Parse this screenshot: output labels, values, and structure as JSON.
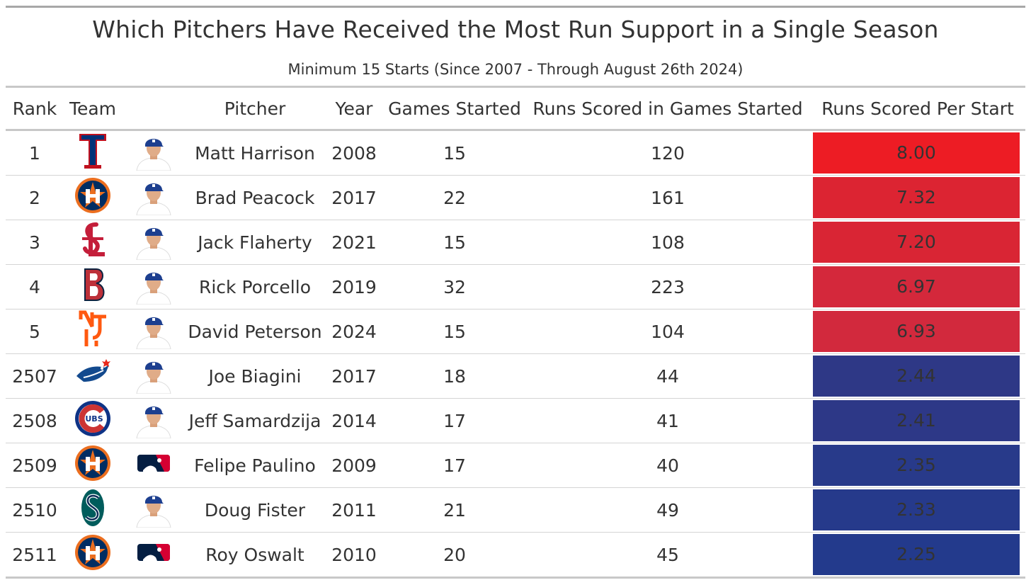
{
  "title": "Which Pitchers Have Received the Most Run Support in a Single Season",
  "subtitle": "Minimum 15 Starts (Since 2007 - Through August 26th 2024)",
  "columns": {
    "rank": "Rank",
    "team": "Team",
    "pitcher": "Pitcher",
    "year": "Year",
    "games_started": "Games Started",
    "runs_scored": "Runs Scored in Games Started",
    "runs_per_start": "Runs Scored Per Start"
  },
  "colors": {
    "high": "#ed1c24",
    "low": "#23398a"
  },
  "chart_data": {
    "type": "table",
    "title": "Which Pitchers Have Received the Most Run Support in a Single Season",
    "subtitle": "Minimum 15 Starts (Since 2007 - Through August 26th 2024)",
    "rows": [
      {
        "rank": "1",
        "team_logo": "rangers-logo",
        "photo": "player-headshot",
        "pitcher": "Matt Harrison",
        "year": "2008",
        "games_started": "15",
        "runs_scored": "120",
        "runs_per_start": "8.00",
        "fill": "#ed1c24"
      },
      {
        "rank": "2",
        "team_logo": "astros-logo",
        "photo": "player-headshot",
        "pitcher": "Brad Peacock",
        "year": "2017",
        "games_started": "22",
        "runs_scored": "161",
        "runs_per_start": "7.32",
        "fill": "#dc2432"
      },
      {
        "rank": "3",
        "team_logo": "cardinals-logo",
        "photo": "player-headshot",
        "pitcher": "Jack Flaherty",
        "year": "2021",
        "games_started": "15",
        "runs_scored": "108",
        "runs_per_start": "7.20",
        "fill": "#d92534"
      },
      {
        "rank": "4",
        "team_logo": "red-sox-logo",
        "photo": "player-headshot",
        "pitcher": "Rick Porcello",
        "year": "2019",
        "games_started": "32",
        "runs_scored": "223",
        "runs_per_start": "6.97",
        "fill": "#d4283b"
      },
      {
        "rank": "5",
        "team_logo": "mets-logo",
        "photo": "player-headshot",
        "pitcher": "David Peterson",
        "year": "2024",
        "games_started": "15",
        "runs_scored": "104",
        "runs_per_start": "6.93",
        "fill": "#d2293d"
      },
      {
        "rank": "2507",
        "team_logo": "blue-jays-logo",
        "photo": "player-headshot",
        "pitcher": "Joe Biagini",
        "year": "2017",
        "games_started": "18",
        "runs_scored": "44",
        "runs_per_start": "2.44",
        "fill": "#2e3886"
      },
      {
        "rank": "2508",
        "team_logo": "cubs-logo",
        "photo": "player-headshot",
        "pitcher": "Jeff Samardzija",
        "year": "2014",
        "games_started": "17",
        "runs_scored": "41",
        "runs_per_start": "2.41",
        "fill": "#2d3887"
      },
      {
        "rank": "2509",
        "team_logo": "astros-logo",
        "photo": "mlb-logo",
        "pitcher": "Felipe Paulino",
        "year": "2009",
        "games_started": "17",
        "runs_scored": "40",
        "runs_per_start": "2.35",
        "fill": "#283a8a"
      },
      {
        "rank": "2510",
        "team_logo": "mariners-logo",
        "photo": "player-headshot",
        "pitcher": "Doug Fister",
        "year": "2011",
        "games_started": "21",
        "runs_scored": "49",
        "runs_per_start": "2.33",
        "fill": "#263a8b"
      },
      {
        "rank": "2511",
        "team_logo": "astros-logo",
        "photo": "mlb-logo",
        "pitcher": "Roy Oswalt",
        "year": "2010",
        "games_started": "20",
        "runs_scored": "45",
        "runs_per_start": "2.25",
        "fill": "#233a8c"
      }
    ]
  }
}
